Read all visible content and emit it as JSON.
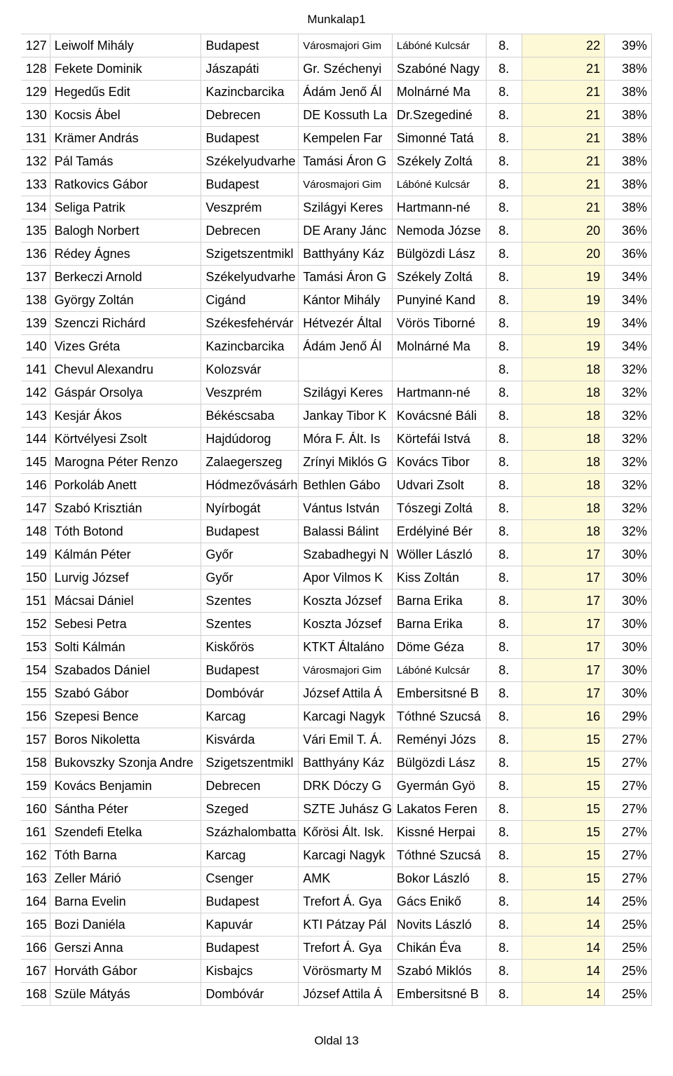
{
  "page_title": "Munkalap1",
  "page_footer": "Oldal 13",
  "colors": {
    "highlight_bg": "#fdf8d6",
    "border": "#d0d0d0",
    "background": "#ffffff",
    "text": "#000000"
  },
  "columns": {
    "rownum_width": 40,
    "name_width": 210,
    "city_width": 135,
    "school_width": 130,
    "teacher_width": 130,
    "grade_width": 50,
    "yellow_width": 115,
    "pct_width": 65,
    "base_fontsize": 18,
    "small_fontsize": 15
  },
  "rows": [
    {
      "n": 127,
      "name": "Leiwolf Mihály",
      "city": "Budapest",
      "school": "Városmajori Gim",
      "school_small": true,
      "teacher": "Lábóné Kulcsár",
      "teacher_small": true,
      "grade": "8.",
      "val": 22,
      "pct": "39%"
    },
    {
      "n": 128,
      "name": "Fekete Dominik",
      "city": "Jászapáti",
      "school": "Gr. Széchenyi",
      "teacher": "Szabóné Nagy",
      "grade": "8.",
      "val": 21,
      "pct": "38%"
    },
    {
      "n": 129,
      "name": "Hegedűs Edit",
      "city": "Kazincbarcika",
      "school": "Ádám Jenő Ál",
      "teacher": "Molnárné Ma",
      "grade": "8.",
      "val": 21,
      "pct": "38%"
    },
    {
      "n": 130,
      "name": "Kocsis Ábel",
      "city": "Debrecen",
      "school": "DE Kossuth La",
      "teacher": "Dr.Szegediné ",
      "grade": "8.",
      "val": 21,
      "pct": "38%"
    },
    {
      "n": 131,
      "name": "Krämer András",
      "city": "Budapest",
      "school": "Kempelen Far",
      "teacher": "Simonné Tatá",
      "grade": "8.",
      "val": 21,
      "pct": "38%"
    },
    {
      "n": 132,
      "name": "Pál Tamás",
      "city": "Székelyudvarhe",
      "school": "Tamási Áron G",
      "teacher": "Székely Zoltá",
      "grade": "8.",
      "val": 21,
      "pct": "38%"
    },
    {
      "n": 133,
      "name": "Ratkovics Gábor",
      "city": "Budapest",
      "school": "Városmajori Gim",
      "school_small": true,
      "teacher": "Lábóné Kulcsár",
      "teacher_small": true,
      "grade": "8.",
      "val": 21,
      "pct": "38%"
    },
    {
      "n": 134,
      "name": "Seliga Patrik",
      "city": "Veszprém",
      "school": "Szilágyi Keres",
      "teacher": "Hartmann-né ",
      "grade": "8.",
      "val": 21,
      "pct": "38%"
    },
    {
      "n": 135,
      "name": "Balogh Norbert",
      "city": "Debrecen",
      "school": "DE Arany Jánc",
      "teacher": "Nemoda Józse",
      "grade": "8.",
      "val": 20,
      "pct": "36%"
    },
    {
      "n": 136,
      "name": "Rédey Ágnes",
      "city": "Szigetszentmikl",
      "school": "Batthyány Káz",
      "teacher": "Bülgözdi Lász",
      "grade": "8.",
      "val": 20,
      "pct": "36%"
    },
    {
      "n": 137,
      "name": "Berkeczi Arnold",
      "city": "Székelyudvarhe",
      "school": "Tamási Áron G",
      "teacher": "Székely Zoltá",
      "grade": "8.",
      "val": 19,
      "pct": "34%"
    },
    {
      "n": 138,
      "name": "György Zoltán",
      "city": "Cigánd",
      "school": "Kántor Mihály",
      "teacher": "Punyiné Kand",
      "grade": "8.",
      "val": 19,
      "pct": "34%"
    },
    {
      "n": 139,
      "name": "Szenczi Richárd",
      "city": "Székesfehérvár",
      "school": "Hétvezér Által",
      "teacher": "Vörös Tiborné",
      "grade": "8.",
      "val": 19,
      "pct": "34%"
    },
    {
      "n": 140,
      "name": "Vizes Gréta",
      "city": "Kazincbarcika",
      "school": "Ádám Jenő Ál",
      "teacher": "Molnárné Ma",
      "grade": "8.",
      "val": 19,
      "pct": "34%"
    },
    {
      "n": 141,
      "name": "Chevul Alexandru",
      "city": "Kolozsvár",
      "school": "",
      "teacher": "",
      "grade": "8.",
      "val": 18,
      "pct": "32%"
    },
    {
      "n": 142,
      "name": "Gáspár Orsolya",
      "city": "Veszprém",
      "school": "Szilágyi Keres",
      "teacher": "Hartmann-né ",
      "grade": "8.",
      "val": 18,
      "pct": "32%"
    },
    {
      "n": 143,
      "name": "Kesjár Ákos",
      "city": "Békéscsaba",
      "school": "Jankay Tibor K",
      "teacher": "Kovácsné Báli",
      "grade": "8.",
      "val": 18,
      "pct": "32%"
    },
    {
      "n": 144,
      "name": "Körtvélyesi Zsolt",
      "city": "Hajdúdorog",
      "school": "Móra F. Ált. Is",
      "teacher": "Körtefái Istvá",
      "grade": "8.",
      "val": 18,
      "pct": "32%"
    },
    {
      "n": 145,
      "name": "Marogna Péter Renzo",
      "city": "Zalaegerszeg",
      "school": "Zrínyi Miklós G",
      "teacher": "Kovács Tibor",
      "grade": "8.",
      "val": 18,
      "pct": "32%"
    },
    {
      "n": 146,
      "name": "Porkoláb Anett",
      "city": "Hódmezővásárh",
      "school": "Bethlen Gábo",
      "teacher": "Udvari Zsolt",
      "grade": "8.",
      "val": 18,
      "pct": "32%"
    },
    {
      "n": 147,
      "name": "Szabó Krisztián",
      "city": "Nyírbogát",
      "school": "Vántus István",
      "teacher": "Tószegi Zoltá",
      "grade": "8.",
      "val": 18,
      "pct": "32%"
    },
    {
      "n": 148,
      "name": "Tóth Botond",
      "city": "Budapest",
      "school": "Balassi Bálint",
      "teacher": "Erdélyiné Bér",
      "grade": "8.",
      "val": 18,
      "pct": "32%"
    },
    {
      "n": 149,
      "name": "Kálmán Péter",
      "city": "Győr",
      "school": "Szabadhegyi N",
      "teacher": "Wöller László",
      "grade": "8.",
      "val": 17,
      "pct": "30%"
    },
    {
      "n": 150,
      "name": "Lurvig József",
      "city": "Győr",
      "school": "Apor Vilmos K",
      "teacher": "Kiss Zoltán",
      "grade": "8.",
      "val": 17,
      "pct": "30%"
    },
    {
      "n": 151,
      "name": "Mácsai Dániel",
      "city": "Szentes",
      "school": "Koszta József ",
      "teacher": "Barna Erika",
      "grade": "8.",
      "val": 17,
      "pct": "30%"
    },
    {
      "n": 152,
      "name": "Sebesi Petra",
      "city": "Szentes",
      "school": "Koszta József ",
      "teacher": "Barna Erika",
      "grade": "8.",
      "val": 17,
      "pct": "30%"
    },
    {
      "n": 153,
      "name": "Solti Kálmán",
      "city": "Kiskőrös",
      "school": "KTKT Általáno",
      "teacher": "Döme Géza",
      "grade": "8.",
      "val": 17,
      "pct": "30%"
    },
    {
      "n": 154,
      "name": "Szabados Dániel",
      "city": "Budapest",
      "school": "Városmajori Gim",
      "school_small": true,
      "teacher": "Lábóné Kulcsár",
      "teacher_small": true,
      "grade": "8.",
      "val": 17,
      "pct": "30%"
    },
    {
      "n": 155,
      "name": "Szabó Gábor",
      "city": "Dombóvár",
      "school": "József Attila Á",
      "teacher": "Embersitsné B",
      "grade": "8.",
      "val": 17,
      "pct": "30%"
    },
    {
      "n": 156,
      "name": "Szepesi Bence",
      "city": "Karcag",
      "school": "Karcagi Nagyk",
      "teacher": "Tóthné Szucsá",
      "grade": "8.",
      "val": 16,
      "pct": "29%"
    },
    {
      "n": 157,
      "name": "Boros Nikoletta",
      "city": "Kisvárda",
      "school": "Vári Emil T. Á.",
      "teacher": "Reményi Józs",
      "grade": "8.",
      "val": 15,
      "pct": "27%"
    },
    {
      "n": 158,
      "name": "Bukovszky Szonja Andre",
      "city": "Szigetszentmikl",
      "school": "Batthyány Káz",
      "teacher": "Bülgözdi Lász",
      "grade": "8.",
      "val": 15,
      "pct": "27%"
    },
    {
      "n": 159,
      "name": "Kovács Benjamin",
      "city": "Debrecen",
      "school": "DRK Dóczy G",
      "teacher": "Gyermán Gyö",
      "grade": "8.",
      "val": 15,
      "pct": "27%"
    },
    {
      "n": 160,
      "name": "Sántha Péter",
      "city": "Szeged",
      "school": "SZTE Juhász G",
      "teacher": "Lakatos Feren",
      "grade": "8.",
      "val": 15,
      "pct": "27%"
    },
    {
      "n": 161,
      "name": "Szendefi Etelka",
      "city": "Százhalombatta",
      "school": "Kőrösi Ált. Isk.",
      "teacher": "Kissné Herpai",
      "grade": "8.",
      "val": 15,
      "pct": "27%"
    },
    {
      "n": 162,
      "name": "Tóth Barna",
      "city": "Karcag",
      "school": "Karcagi Nagyk",
      "teacher": "Tóthné Szucsá",
      "grade": "8.",
      "val": 15,
      "pct": "27%"
    },
    {
      "n": 163,
      "name": "Zeller Márió",
      "city": "Csenger",
      "school": "AMK",
      "teacher": "Bokor László",
      "grade": "8.",
      "val": 15,
      "pct": "27%"
    },
    {
      "n": 164,
      "name": "Barna Evelin",
      "city": "Budapest",
      "school": "Trefort Á. Gya",
      "teacher": "Gács Enikő",
      "grade": "8.",
      "val": 14,
      "pct": "25%"
    },
    {
      "n": 165,
      "name": "Bozi Daniéla",
      "city": "Kapuvár",
      "school": "KTI Pátzay Pál",
      "teacher": "Novits László",
      "grade": "8.",
      "val": 14,
      "pct": "25%"
    },
    {
      "n": 166,
      "name": "Gerszi Anna",
      "city": "Budapest",
      "school": "Trefort Á. Gya",
      "teacher": "Chikán Éva",
      "grade": "8.",
      "val": 14,
      "pct": "25%"
    },
    {
      "n": 167,
      "name": "Horváth Gábor",
      "city": "Kisbajcs",
      "school": "Vörösmarty M",
      "teacher": "Szabó Miklós",
      "grade": "8.",
      "val": 14,
      "pct": "25%"
    },
    {
      "n": 168,
      "name": "Szüle Mátyás",
      "city": "Dombóvár",
      "school": "József Attila Á",
      "teacher": "Embersitsné B",
      "grade": "8.",
      "val": 14,
      "pct": "25%"
    }
  ]
}
